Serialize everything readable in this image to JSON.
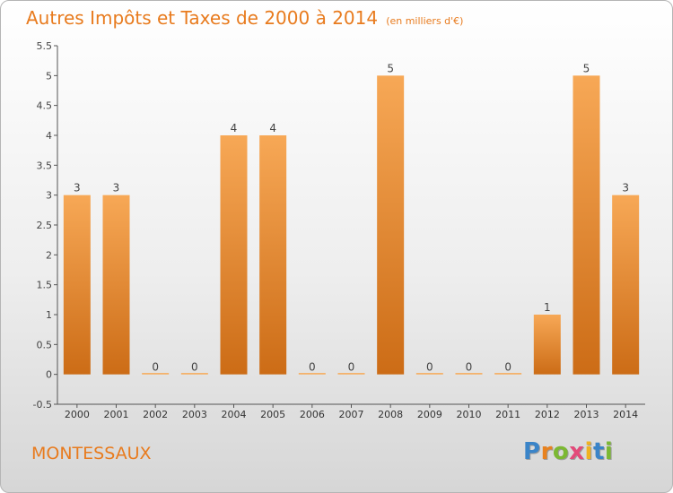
{
  "title": "Autres Impôts et Taxes de 2000 à 2014",
  "unit": "(en milliers d'€)",
  "commune": "MONTESSAUX",
  "brand": {
    "letters": [
      "P",
      "r",
      "o",
      "x",
      "i",
      "t",
      "i"
    ],
    "colors": [
      "#3a84c8",
      "#e8821f",
      "#7cb833",
      "#e34a7a",
      "#f0b21f",
      "#3a84c8",
      "#7cb833"
    ]
  },
  "colors": {
    "bar_light": "#f7a856",
    "bar_dark": "#cc6c16",
    "axis_text": "#444444",
    "title": "#e87b1e"
  },
  "chart_data": {
    "type": "bar",
    "title": "Autres Impôts et Taxes de 2000 à 2014",
    "categories": [
      "2000",
      "2001",
      "2002",
      "2003",
      "2004",
      "2005",
      "2006",
      "2007",
      "2008",
      "2009",
      "2010",
      "2011",
      "2012",
      "2013",
      "2014"
    ],
    "values": [
      3,
      3,
      0,
      0,
      4,
      4,
      0,
      0,
      5,
      0,
      0,
      0,
      1,
      5,
      3
    ],
    "ylim": [
      -0.5,
      5.5
    ],
    "yticks": [
      "-0.5",
      "0",
      "0.5",
      "1",
      "1.5",
      "2",
      "2.5",
      "3",
      "3.5",
      "4",
      "4.5",
      "5",
      "5.5"
    ],
    "grid": false,
    "legend": false
  }
}
